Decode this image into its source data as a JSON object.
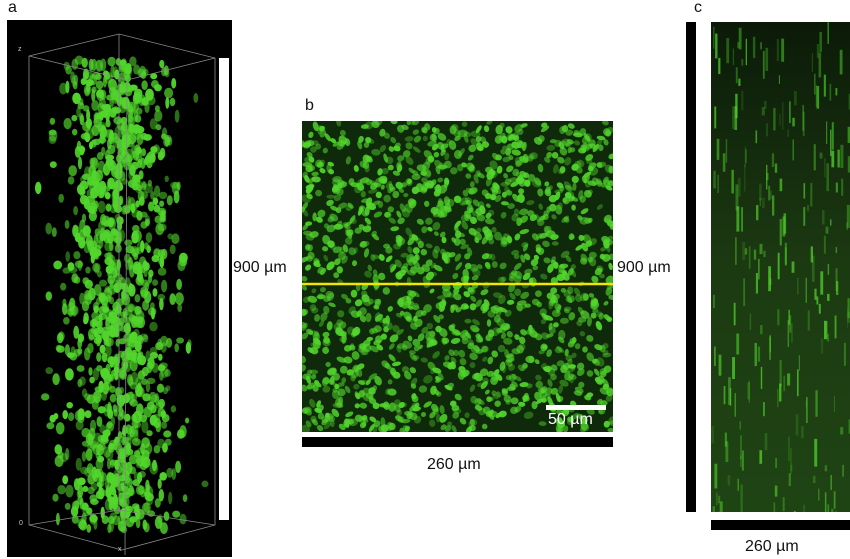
{
  "panels": {
    "a": {
      "letter": "a",
      "axis_labels": {
        "z": "z",
        "origin": "0",
        "x": "x"
      }
    },
    "b": {
      "letter": "b",
      "scale_bar_label": "50 µm",
      "height_label": "900 µm",
      "width_label": "260 µm"
    },
    "c": {
      "letter": "c",
      "height_label": "900 µm",
      "width_label": "260 µm"
    }
  },
  "colors": {
    "cell_green": "#52d62c",
    "cut_line_yellow": "#f2e600",
    "background": "#000000"
  }
}
